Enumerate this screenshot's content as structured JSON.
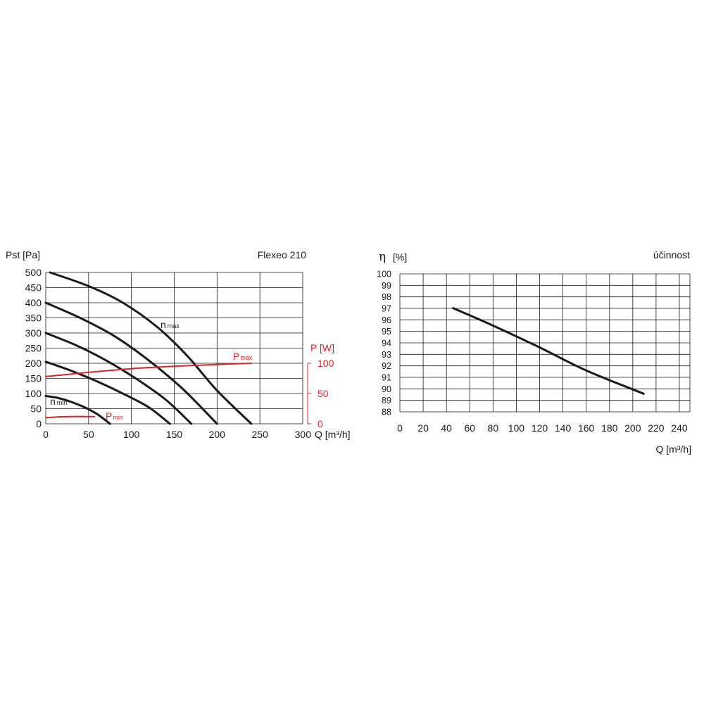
{
  "colors": {
    "black_curve": "#1a1a1a",
    "red_curve": "#d6262b",
    "grid": "#1a1a1a"
  },
  "chart_data": [
    {
      "type": "line",
      "title": "Flexeo 210",
      "ylabel": "Pst [Pa]",
      "xlabel": "Q [m³/h]",
      "y2label": "P [W]",
      "xlim": [
        0,
        300
      ],
      "ylim": [
        0,
        500
      ],
      "y2lim": [
        0,
        100
      ],
      "x_ticks": [
        "0",
        "50",
        "100",
        "150",
        "200",
        "250",
        "300"
      ],
      "y_ticks": [
        "0",
        "50",
        "100",
        "150",
        "200",
        "250",
        "300",
        "350",
        "400",
        "450",
        "500"
      ],
      "y2_ticks": [
        "0",
        "50",
        "100"
      ],
      "grid": true,
      "curve_labels": {
        "n_max": {
          "main": "n",
          "sub": "max"
        },
        "n_min": {
          "main": "n",
          "sub": "min"
        },
        "P_max": {
          "main": "P",
          "sub": "max"
        },
        "P_min": {
          "main": "P",
          "sub": "min"
        }
      },
      "series": [
        {
          "axis": "y",
          "color": "black",
          "x": [
            5,
            50,
            90,
            130,
            165,
            200,
            240
          ],
          "y": [
            500,
            455,
            400,
            320,
            225,
            110,
            0
          ]
        },
        {
          "axis": "y",
          "color": "black",
          "x": [
            0,
            40,
            80,
            120,
            160,
            200
          ],
          "y": [
            400,
            350,
            290,
            210,
            115,
            0
          ]
        },
        {
          "axis": "y",
          "color": "black",
          "x": [
            0,
            35,
            70,
            105,
            140,
            170
          ],
          "y": [
            300,
            260,
            210,
            150,
            80,
            0
          ]
        },
        {
          "axis": "y",
          "color": "black",
          "x": [
            0,
            30,
            60,
            90,
            120,
            145
          ],
          "y": [
            205,
            175,
            140,
            100,
            55,
            0
          ]
        },
        {
          "axis": "y",
          "color": "black",
          "x": [
            0,
            15,
            30,
            45,
            60,
            75
          ],
          "y": [
            92,
            85,
            72,
            55,
            32,
            0
          ]
        },
        {
          "axis": "y2",
          "color": "red",
          "x": [
            0,
            50,
            100,
            150,
            200,
            240
          ],
          "y": [
            78,
            85,
            91,
            95,
            98,
            100
          ]
        },
        {
          "axis": "y2",
          "color": "red",
          "x": [
            0,
            15,
            30,
            45,
            57
          ],
          "y": [
            10,
            11.5,
            12,
            12,
            12
          ]
        }
      ]
    },
    {
      "type": "line",
      "title": "účinnost",
      "ylabel_symbol": "η",
      "ylabel_unit": "[%]",
      "xlabel": "Q [m³/h]",
      "xlim": [
        0,
        240
      ],
      "ylim": [
        88,
        100
      ],
      "x_ticks": [
        "0",
        "20",
        "40",
        "60",
        "80",
        "100",
        "120",
        "140",
        "160",
        "180",
        "200",
        "220",
        "240"
      ],
      "y_ticks": [
        "88",
        "89",
        "90",
        "91",
        "92",
        "93",
        "94",
        "95",
        "96",
        "97",
        "98",
        "99",
        "100"
      ],
      "grid": true,
      "series": [
        {
          "color": "black",
          "x": [
            45,
            80,
            120,
            160,
            210
          ],
          "y": [
            97.05,
            95.5,
            93.6,
            91.6,
            89.55
          ]
        }
      ]
    }
  ]
}
